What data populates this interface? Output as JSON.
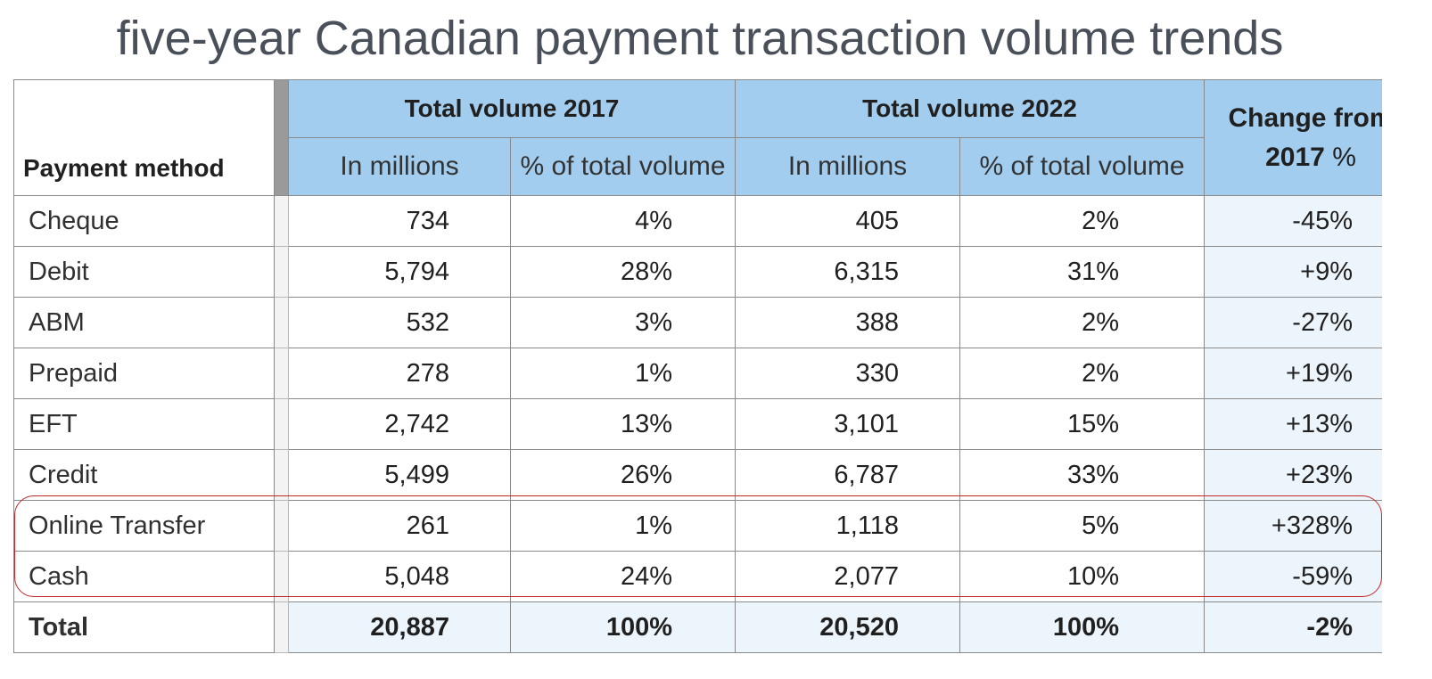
{
  "title": "five-year Canadian payment transaction volume trends",
  "chart_data": {
    "type": "table",
    "title": "five-year Canadian payment transaction volume trends",
    "columns": {
      "method": "Payment method",
      "group_2017": "Total volume 2017",
      "group_2022": "Total volume 2022",
      "sub_millions": "In millions",
      "sub_pct": "% of total volume",
      "change_line1": "Change from",
      "change_year": "2017",
      "change_pct": "%"
    },
    "rows": [
      {
        "method": "Cheque",
        "v2017": "734",
        "p2017": "4%",
        "v2022": "405",
        "p2022": "2%",
        "change": "-45%"
      },
      {
        "method": "Debit",
        "v2017": "5,794",
        "p2017": "28%",
        "v2022": "6,315",
        "p2022": "31%",
        "change": "+9%"
      },
      {
        "method": "ABM",
        "v2017": "532",
        "p2017": "3%",
        "v2022": "388",
        "p2022": "2%",
        "change": "-27%"
      },
      {
        "method": "Prepaid",
        "v2017": "278",
        "p2017": "1%",
        "v2022": "330",
        "p2022": "2%",
        "change": "+19%"
      },
      {
        "method": "EFT",
        "v2017": "2,742",
        "p2017": "13%",
        "v2022": "3,101",
        "p2022": "15%",
        "change": "+13%"
      },
      {
        "method": "Credit",
        "v2017": "5,499",
        "p2017": "26%",
        "v2022": "6,787",
        "p2022": "33%",
        "change": "+23%"
      },
      {
        "method": "Online Transfer",
        "v2017": "261",
        "p2017": "1%",
        "v2022": "1,118",
        "p2022": "5%",
        "change": "+328%"
      },
      {
        "method": "Cash",
        "v2017": "5,048",
        "p2017": "24%",
        "v2022": "2,077",
        "p2022": "10%",
        "change": "-59%"
      }
    ],
    "total": {
      "method": "Total",
      "v2017": "20,887",
      "p2017": "100%",
      "v2022": "20,520",
      "p2022": "100%",
      "change": "-2%"
    },
    "highlighted_rows": [
      "Online Transfer",
      "Cash"
    ],
    "colors": {
      "header_fill": "#a3cdee",
      "change_fill": "#edf5fc",
      "highlight_outline": "#c0282a",
      "title_text": "#4a5059"
    }
  }
}
